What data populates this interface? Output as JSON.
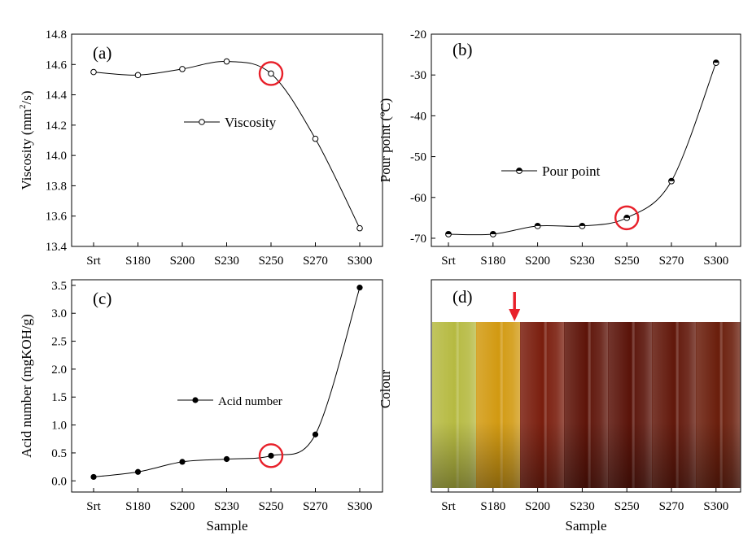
{
  "chart_data": [
    {
      "panel": "(a)",
      "type": "line",
      "categories": [
        "Srt",
        "S180",
        "S200",
        "S230",
        "S250",
        "S270",
        "S300"
      ],
      "series": [
        {
          "name": "Viscosity",
          "values": [
            14.55,
            14.53,
            14.57,
            14.62,
            14.54,
            14.11,
            13.52
          ],
          "marker": "open-circle"
        }
      ],
      "ylabel_main": "Viscosity (mm",
      "ylabel_sup": "2",
      "ylabel_end": "/s)",
      "xlabel": "",
      "ylim": [
        13.4,
        14.8
      ],
      "yticks": [
        "13.4",
        "13.6",
        "13.8",
        "14.0",
        "14.2",
        "14.4",
        "14.6",
        "14.8"
      ],
      "highlight_category": "S250",
      "legend_position": "center"
    },
    {
      "panel": "(b)",
      "type": "line",
      "categories": [
        "Srt",
        "S180",
        "S200",
        "S230",
        "S250",
        "S270",
        "S300"
      ],
      "series": [
        {
          "name": "Pour point",
          "values": [
            -69,
            -69,
            -67,
            -67,
            -65,
            -56,
            -27
          ],
          "marker": "half-filled-circle"
        }
      ],
      "ylabel": "Pour point (ºC)",
      "xlabel": "",
      "ylim": [
        -72,
        -20
      ],
      "yticks": [
        "-70",
        "-60",
        "-50",
        "-40",
        "-30",
        "-20"
      ],
      "highlight_category": "S250",
      "legend_position": "center-left"
    },
    {
      "panel": "(c)",
      "type": "line",
      "categories": [
        "Srt",
        "S180",
        "S200",
        "S230",
        "S250",
        "S270",
        "S300"
      ],
      "series": [
        {
          "name": "Acid number",
          "values": [
            0.07,
            0.16,
            0.34,
            0.39,
            0.45,
            0.83,
            3.46
          ],
          "marker": "filled-circle"
        }
      ],
      "ylabel": "Acid number (mgKOH/g)",
      "xlabel": "Sample",
      "ylim": [
        -0.2,
        3.6
      ],
      "yticks": [
        "0.0",
        "0.5",
        "1.0",
        "1.5",
        "2.0",
        "2.5",
        "3.0",
        "3.5"
      ],
      "highlight_category": "S250",
      "legend_position": "center-left"
    },
    {
      "panel": "(d)",
      "type": "image",
      "categories": [
        "Srt",
        "S180",
        "S200",
        "S230",
        "S250",
        "S270",
        "S300"
      ],
      "ylabel": "Colour",
      "xlabel": "Sample",
      "arrow_between": [
        "S180",
        "S200"
      ],
      "colors": {
        "Srt": "#b6ba42",
        "S180": "#d29a12",
        "S200": "#7a1e0e",
        "S230": "#5e1409",
        "S250": "#5a1309",
        "S270": "#62180b",
        "S300": "#6a1e0c"
      }
    }
  ],
  "colors": {
    "highlight": "#e8202a",
    "arrow": "#e8202a"
  }
}
